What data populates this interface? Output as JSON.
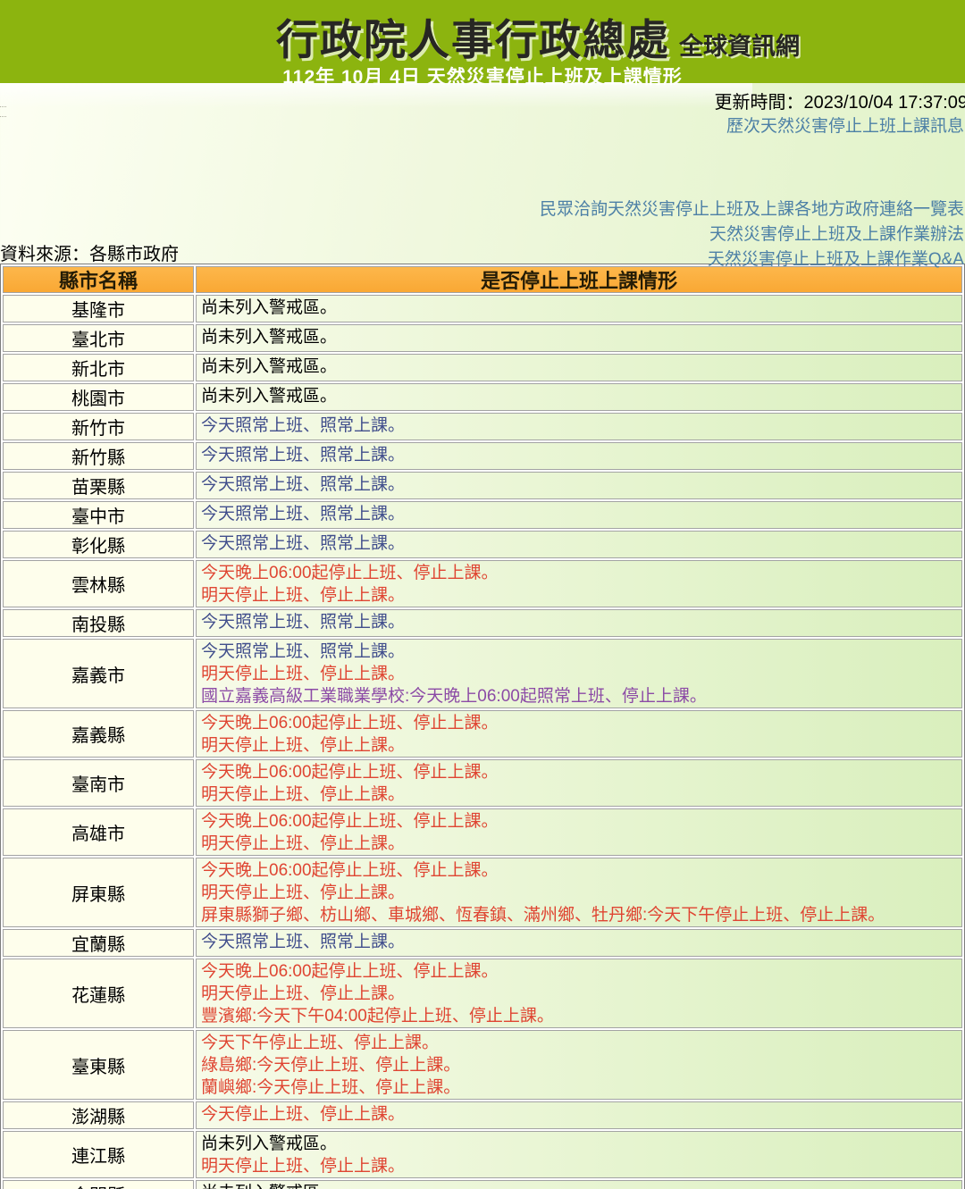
{
  "header": {
    "title": "行政院人事行政總處",
    "suffix": "全球資訊網",
    "subtitle": "112年 10月 4日 天然災害停止上班及上課情形"
  },
  "meta": {
    "update_time": "更新時間：2023/10/04 17:37:09",
    "source": "資料來源：各縣市政府"
  },
  "links": [
    {
      "label": "歷次天然災害停止上班上課訊息"
    },
    {
      "label": "民眾洽詢天然災害停止上班及上課各地方政府連絡一覽表"
    },
    {
      "label": "天然災害停止上班及上課作業辦法"
    },
    {
      "label": "天然災害停止上班及上課作業Q&A"
    }
  ],
  "colors": {
    "header_green": "#8CB40F",
    "table_header_orange": "#FBAE3C",
    "status_red": "#DF4532",
    "status_blue": "#414E8C",
    "note_purple": "#8C4BA6",
    "link_blue": "#4D80A6",
    "footer_lavender": "#DFCBE6"
  },
  "table": {
    "headers": [
      "縣市名稱",
      "是否停止上班上課情形"
    ],
    "rows": [
      {
        "city": "基隆市",
        "lines": [
          {
            "text": "尚未列入警戒區。",
            "tone": "black"
          }
        ]
      },
      {
        "city": "臺北市",
        "lines": [
          {
            "text": "尚未列入警戒區。",
            "tone": "black"
          }
        ]
      },
      {
        "city": "新北市",
        "lines": [
          {
            "text": "尚未列入警戒區。",
            "tone": "black"
          }
        ]
      },
      {
        "city": "桃園市",
        "lines": [
          {
            "text": "尚未列入警戒區。",
            "tone": "black"
          }
        ]
      },
      {
        "city": "新竹市",
        "lines": [
          {
            "text": "今天照常上班、照常上課。",
            "tone": "blue"
          }
        ]
      },
      {
        "city": "新竹縣",
        "lines": [
          {
            "text": "今天照常上班、照常上課。",
            "tone": "blue"
          }
        ]
      },
      {
        "city": "苗栗縣",
        "lines": [
          {
            "text": "今天照常上班、照常上課。",
            "tone": "blue"
          }
        ]
      },
      {
        "city": "臺中市",
        "lines": [
          {
            "text": "今天照常上班、照常上課。",
            "tone": "blue"
          }
        ]
      },
      {
        "city": "彰化縣",
        "lines": [
          {
            "text": "今天照常上班、照常上課。",
            "tone": "blue"
          }
        ]
      },
      {
        "city": "雲林縣",
        "lines": [
          {
            "text": "今天晚上06:00起停止上班、停止上課。",
            "tone": "red"
          },
          {
            "text": "明天停止上班、停止上課。",
            "tone": "red"
          }
        ]
      },
      {
        "city": "南投縣",
        "lines": [
          {
            "text": "今天照常上班、照常上課。",
            "tone": "blue"
          }
        ]
      },
      {
        "city": "嘉義市",
        "lines": [
          {
            "text": "今天照常上班、照常上課。",
            "tone": "blue"
          },
          {
            "text": "明天停止上班、停止上課。",
            "tone": "red"
          },
          {
            "text": "國立嘉義高級工業職業學校:今天晚上06:00起照常上班、停止上課。",
            "tone": "purple"
          }
        ]
      },
      {
        "city": "嘉義縣",
        "lines": [
          {
            "text": "今天晚上06:00起停止上班、停止上課。",
            "tone": "red"
          },
          {
            "text": "明天停止上班、停止上課。",
            "tone": "red"
          }
        ]
      },
      {
        "city": "臺南市",
        "lines": [
          {
            "text": "今天晚上06:00起停止上班、停止上課。",
            "tone": "red"
          },
          {
            "text": "明天停止上班、停止上課。",
            "tone": "red"
          }
        ]
      },
      {
        "city": "高雄市",
        "lines": [
          {
            "text": "今天晚上06:00起停止上班、停止上課。",
            "tone": "red"
          },
          {
            "text": "明天停止上班、停止上課。",
            "tone": "red"
          }
        ]
      },
      {
        "city": "屏東縣",
        "lines": [
          {
            "text": "今天晚上06:00起停止上班、停止上課。",
            "tone": "red"
          },
          {
            "text": "明天停止上班、停止上課。",
            "tone": "red"
          },
          {
            "text": "屏東縣獅子鄉、枋山鄉、車城鄉、恆春鎮、滿州鄉、牡丹鄉:今天下午停止上班、停止上課。",
            "tone": "red"
          }
        ]
      },
      {
        "city": "宜蘭縣",
        "lines": [
          {
            "text": "今天照常上班、照常上課。",
            "tone": "blue"
          }
        ]
      },
      {
        "city": "花蓮縣",
        "lines": [
          {
            "text": "今天晚上06:00起停止上班、停止上課。",
            "tone": "red"
          },
          {
            "text": "明天停止上班、停止上課。",
            "tone": "red"
          },
          {
            "text": "豐濱鄉:今天下午04:00起停止上班、停止上課。",
            "tone": "red"
          }
        ]
      },
      {
        "city": "臺東縣",
        "lines": [
          {
            "text": "今天下午停止上班、停止上課。",
            "tone": "red"
          },
          {
            "text": "綠島鄉:今天停止上班、停止上課。",
            "tone": "red"
          },
          {
            "text": "蘭嶼鄉:今天停止上班、停止上課。",
            "tone": "red"
          }
        ]
      },
      {
        "city": "澎湖縣",
        "lines": [
          {
            "text": "今天停止上班、停止上課。",
            "tone": "red"
          }
        ]
      },
      {
        "city": "連江縣",
        "lines": [
          {
            "text": "尚未列入警戒區。",
            "tone": "black"
          },
          {
            "text": "明天停止上班、停止上課。",
            "tone": "red"
          }
        ]
      },
      {
        "city": "金門縣",
        "lines": [
          {
            "text": "尚未列入警戒區。",
            "tone": "black"
          }
        ]
      }
    ]
  }
}
